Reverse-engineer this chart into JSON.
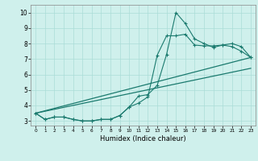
{
  "title": "",
  "xlabel": "Humidex (Indice chaleur)",
  "x_values": [
    0,
    1,
    2,
    3,
    4,
    5,
    6,
    7,
    8,
    9,
    10,
    11,
    12,
    13,
    14,
    15,
    16,
    17,
    18,
    19,
    20,
    21,
    22,
    23
  ],
  "line1": [
    3.5,
    3.1,
    3.25,
    3.25,
    3.1,
    3.0,
    3.0,
    3.1,
    3.1,
    3.35,
    3.9,
    4.6,
    4.7,
    5.3,
    7.3,
    10.0,
    9.3,
    8.3,
    8.0,
    7.75,
    7.9,
    8.0,
    7.8,
    7.1
  ],
  "line2": [
    3.5,
    3.1,
    3.25,
    3.25,
    3.1,
    3.0,
    3.0,
    3.1,
    3.1,
    3.35,
    3.9,
    4.15,
    4.55,
    7.25,
    8.5,
    8.5,
    8.6,
    7.9,
    7.85,
    7.85,
    7.9,
    7.8,
    7.5,
    7.1
  ],
  "line3_x": [
    0,
    23
  ],
  "line3_y": [
    3.5,
    6.4
  ],
  "line4_x": [
    0,
    23
  ],
  "line4_y": [
    3.5,
    7.1
  ],
  "line_color": "#1a7a6e",
  "bg_color": "#cff0ec",
  "grid_color": "#aaddd7",
  "ylim": [
    2.7,
    10.5
  ],
  "xlim": [
    -0.5,
    23.5
  ],
  "yticks": [
    3,
    4,
    5,
    6,
    7,
    8,
    9,
    10
  ],
  "xticks": [
    0,
    1,
    2,
    3,
    4,
    5,
    6,
    7,
    8,
    9,
    10,
    11,
    12,
    13,
    14,
    15,
    16,
    17,
    18,
    19,
    20,
    21,
    22,
    23
  ]
}
